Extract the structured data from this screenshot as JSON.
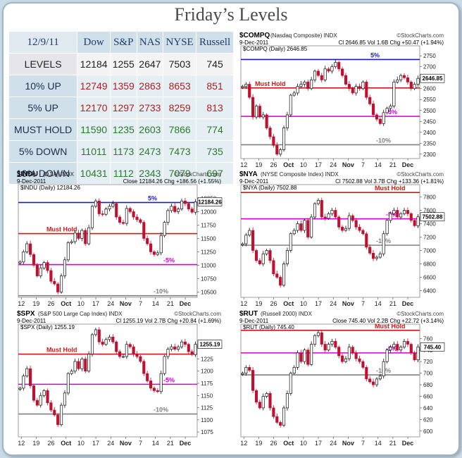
{
  "title": "Friday’s Levels",
  "levels_table": {
    "date": "12/9/11",
    "columns": [
      "Dow",
      "S&P",
      "NAS",
      "NYSE",
      "Russell"
    ],
    "rows": [
      {
        "label": "LEVELS",
        "kind": "level",
        "values": [
          "12184",
          "1255",
          "2647",
          "7503",
          "745"
        ]
      },
      {
        "label": "10% UP",
        "kind": "up",
        "values": [
          "12749",
          "1359",
          "2863",
          "8653",
          "851"
        ]
      },
      {
        "label": "5% UP",
        "kind": "up",
        "values": [
          "12170",
          "1297",
          "2733",
          "8259",
          "813"
        ]
      },
      {
        "label": "MUST HOLD",
        "kind": "dn",
        "values": [
          "11590",
          "1235",
          "2603",
          "7866",
          "774"
        ]
      },
      {
        "label": "5% DOWN",
        "kind": "dn",
        "values": [
          "11011",
          "1173",
          "2473",
          "7473",
          "735"
        ]
      },
      {
        "label": "10% DOWN",
        "kind": "dn",
        "values": [
          "10431",
          "1112",
          "2343",
          "7079",
          "697"
        ]
      }
    ]
  },
  "chart_data": [
    {
      "type": "candlestick",
      "symbol": "$COMPQ",
      "name": "(Nasdaq Composite)",
      "exchange": "INDX",
      "source": "©StockCharts.com",
      "date": "9-Dec-2011",
      "stats": "Cl 2646.85  Vol 1.6B  Chg +50.47 (+1.94%)",
      "legend": "$COMPQ (Daily) 2646.85",
      "last": "2646.85",
      "ylim": [
        2280,
        2770
      ],
      "yticks": [
        2300,
        2350,
        2400,
        2450,
        2500,
        2550,
        2600,
        2650,
        2700,
        2750
      ],
      "xticks": [
        "12",
        "19",
        "26",
        "Oct",
        "10",
        "17",
        "24",
        "Nov",
        "7",
        "14",
        "21",
        "Dec"
      ],
      "levels": [
        {
          "value": 2733,
          "label": "5%",
          "color": "#1a1acc"
        },
        {
          "value": 2603,
          "label": "Must Hold",
          "color": "#d01818"
        },
        {
          "value": 2473,
          "label": "-5%",
          "color": "#d000d0"
        },
        {
          "value": 2343,
          "label": "-10%",
          "color": "#808080"
        }
      ],
      "closes": [
        2610,
        2620,
        2560,
        2470,
        2520,
        2470,
        2480,
        2420,
        2380,
        2340,
        2300,
        2320,
        2420,
        2480,
        2570,
        2580,
        2610,
        2620,
        2630,
        2600,
        2640,
        2680,
        2660,
        2640,
        2690,
        2680,
        2700,
        2720,
        2690,
        2660,
        2620,
        2600,
        2580,
        2610,
        2600,
        2630,
        2560,
        2530,
        2480,
        2460,
        2440,
        2490,
        2510,
        2520,
        2630,
        2640,
        2660,
        2650,
        2630,
        2600,
        2620,
        2646.85
      ]
    },
    {
      "type": "candlestick",
      "symbol": "$INDU",
      "name": "(DJIA)",
      "exchange": "INDX",
      "source": "©StockCharts.com",
      "date": "9-Dec-2011",
      "stats": "Close 12184.26  Chg +186.56 (+1.55%)",
      "legend": "$INDU (Daily) 12184.26",
      "last": "12184.26",
      "ylim": [
        10400,
        12400
      ],
      "yticks": [
        10500,
        10750,
        11000,
        11250,
        11500,
        11750,
        12000,
        12250
      ],
      "xticks": [
        "12",
        "19",
        "26",
        "Oct",
        "10",
        "17",
        "24",
        "Nov",
        "7",
        "14",
        "21",
        "Dec"
      ],
      "levels": [
        {
          "value": 12170,
          "label": "5%",
          "color": "#1a1acc"
        },
        {
          "value": 11590,
          "label": "Must Hold",
          "color": "#d01818"
        },
        {
          "value": 11011,
          "label": "-5%",
          "color": "#d000d0"
        },
        {
          "value": 10431,
          "label": "-10%",
          "color": "#808080"
        }
      ],
      "closes": [
        11060,
        11250,
        11400,
        11200,
        11000,
        10800,
        10950,
        11050,
        10900,
        10700,
        10650,
        10500,
        10800,
        11100,
        11420,
        11440,
        11600,
        11500,
        11650,
        11400,
        11700,
        12100,
        12200,
        11960,
        11950,
        12050,
        12100,
        12150,
        11900,
        11800,
        11780,
        12060,
        12000,
        11900,
        11850,
        11800,
        11500,
        11400,
        11250,
        11200,
        11231,
        11555,
        11800,
        12020,
        12100,
        12000,
        12050,
        12200,
        12150,
        12050,
        11990,
        12184.26
      ]
    },
    {
      "type": "candlestick",
      "symbol": "$NYA",
      "name": "(NYSE Composite Index)",
      "exchange": "INDX",
      "source": "©StockCharts.com",
      "date": "9-Dec-2011",
      "stats": "Cl 7502.88  Vol 3.7B  Chg +133.36 (+1.81%)",
      "legend": "$NYA (Daily) 7502.88",
      "last": "7502.88",
      "ylim": [
        6300,
        7900
      ],
      "yticks": [
        6400,
        6600,
        6800,
        7000,
        7200,
        7400,
        7600,
        7800
      ],
      "xticks": [
        "12",
        "19",
        "26",
        "Oct",
        "10",
        "17",
        "24",
        "Nov",
        "7",
        "14",
        "21",
        "Dec"
      ],
      "levels": [
        {
          "value": 7866,
          "label": "Must Hold",
          "color": "#d01818"
        },
        {
          "value": 7473,
          "label": "-5%",
          "color": "#d000d0"
        },
        {
          "value": 7079,
          "label": "-10%",
          "color": "#808080"
        }
      ],
      "closes": [
        7100,
        7230,
        7300,
        7000,
        6850,
        6800,
        6950,
        7000,
        6850,
        6650,
        6600,
        6480,
        6800,
        7000,
        7250,
        7300,
        7400,
        7300,
        7450,
        7200,
        7500,
        7700,
        7750,
        7500,
        7480,
        7550,
        7600,
        7500,
        7350,
        7300,
        7330,
        7520,
        7450,
        7350,
        7300,
        7250,
        7050,
        6960,
        6880,
        6900,
        6950,
        7250,
        7450,
        7550,
        7600,
        7500,
        7550,
        7600,
        7550,
        7450,
        7370,
        7502.88
      ]
    },
    {
      "type": "candlestick",
      "symbol": "$SPX",
      "name": "(S&P 500 Large Cap Index)",
      "exchange": "INDX",
      "source": "©StockCharts.com",
      "date": "9-Dec-2011",
      "stats": "Cl 1255.19  Vol 2.7B  Chg +20.84 (+1.69%)",
      "legend": "$SPX (Daily) 1255.19",
      "last": "1255.19",
      "ylim": [
        1065,
        1285
      ],
      "yticks": [
        1075,
        1100,
        1125,
        1150,
        1175,
        1200,
        1225,
        1250
      ],
      "xticks": [
        "12",
        "19",
        "26",
        "Oct",
        "10",
        "17",
        "24",
        "Nov",
        "7",
        "14",
        "21",
        "Dec"
      ],
      "levels": [
        {
          "value": 1297,
          "label": "5%",
          "color": "#1a1acc"
        },
        {
          "value": 1235,
          "label": "Must Hold",
          "color": "#d01818"
        },
        {
          "value": 1173,
          "label": "-5%",
          "color": "#d000d0"
        },
        {
          "value": 1112,
          "label": "-10%",
          "color": "#808080"
        }
      ],
      "closes": [
        1165,
        1190,
        1205,
        1170,
        1140,
        1130,
        1150,
        1160,
        1135,
        1120,
        1110,
        1090,
        1130,
        1155,
        1195,
        1200,
        1220,
        1205,
        1225,
        1200,
        1235,
        1275,
        1285,
        1260,
        1255,
        1265,
        1270,
        1260,
        1240,
        1230,
        1230,
        1255,
        1250,
        1235,
        1230,
        1220,
        1195,
        1180,
        1165,
        1160,
        1158,
        1195,
        1230,
        1245,
        1250,
        1245,
        1250,
        1260,
        1255,
        1240,
        1234,
        1255.19
      ]
    },
    {
      "type": "candlestick",
      "symbol": "$RUT",
      "name": "(Russell 2000)",
      "exchange": "INDX",
      "source": "©StockCharts.com",
      "date": "9-Dec-2011",
      "stats": "Close 745.40  Vol 2.2B  Chg +22.72 (+3.14%)",
      "legend": "$RUT (Daily) 745.40",
      "last": "745.40",
      "ylim": [
        590,
        775
      ],
      "yticks": [
        600,
        620,
        640,
        660,
        680,
        700,
        720,
        740,
        760
      ],
      "xticks": [
        "12",
        "19",
        "26",
        "Oct",
        "10",
        "17",
        "24",
        "Nov",
        "7",
        "14",
        "21",
        "Dec"
      ],
      "levels": [
        {
          "value": 774,
          "label": "Must Hold",
          "color": "#d01818"
        },
        {
          "value": 735,
          "label": "-5%",
          "color": "#d000d0"
        },
        {
          "value": 697,
          "label": "-10%",
          "color": "#808080"
        }
      ],
      "closes": [
        700,
        710,
        705,
        670,
        650,
        640,
        660,
        665,
        640,
        625,
        615,
        610,
        640,
        665,
        700,
        710,
        735,
        720,
        740,
        715,
        750,
        765,
        770,
        750,
        740,
        750,
        755,
        745,
        730,
        720,
        725,
        745,
        735,
        725,
        720,
        710,
        690,
        685,
        680,
        690,
        695,
        720,
        740,
        745,
        750,
        740,
        745,
        755,
        750,
        735,
        723,
        745.4
      ]
    }
  ]
}
